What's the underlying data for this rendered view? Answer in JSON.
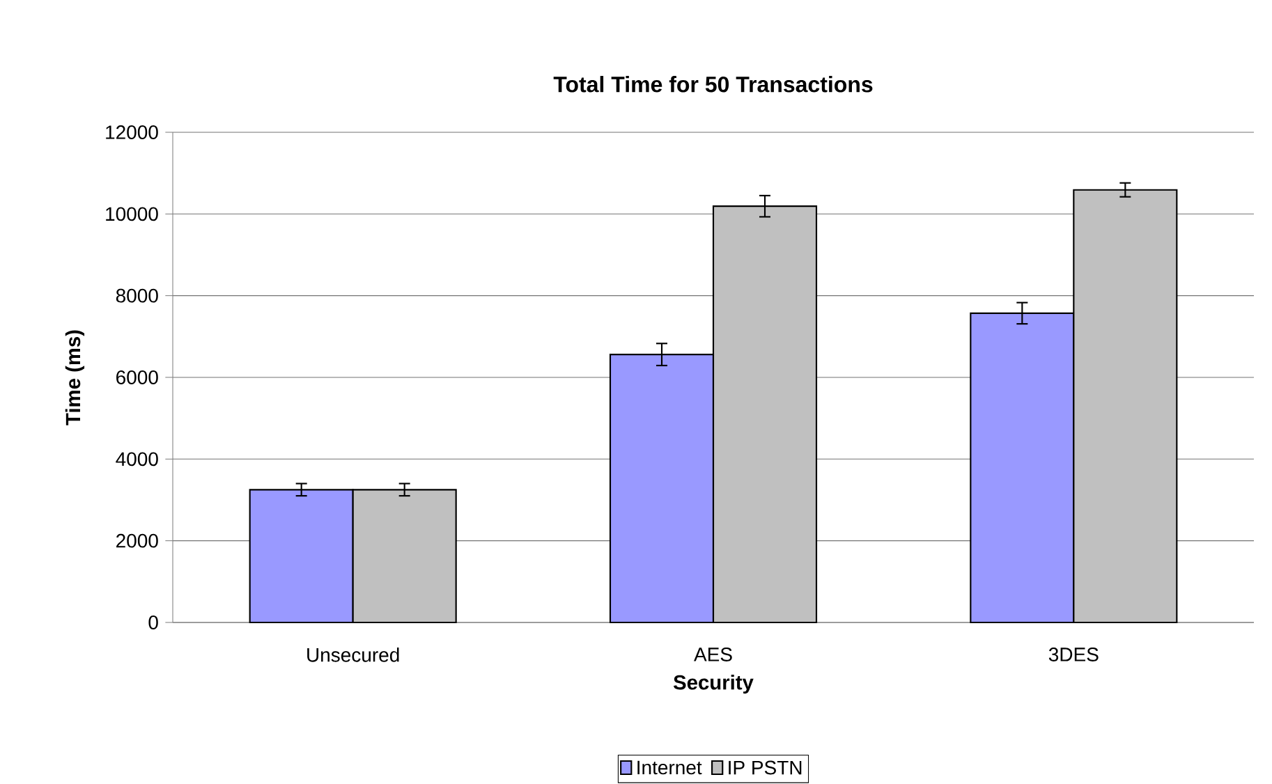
{
  "chart_data": {
    "type": "bar",
    "title": "Total Time for 50 Transactions",
    "xlabel": "Security",
    "ylabel": "Time (ms)",
    "categories": [
      "Unsecured",
      "AES",
      "3DES"
    ],
    "series": [
      {
        "name": "Internet",
        "color": "#9999ff",
        "values": [
          3250,
          6560,
          7570
        ],
        "errors": [
          150,
          270,
          260
        ]
      },
      {
        "name": "IP PSTN",
        "color": "#c0c0c0",
        "values": [
          3250,
          10190,
          10590
        ],
        "errors": [
          150,
          260,
          170
        ]
      }
    ],
    "ylim": [
      0,
      12000
    ],
    "yticks": [
      0,
      2000,
      4000,
      6000,
      8000,
      10000,
      12000
    ],
    "grid": "y",
    "legend": "bottom"
  }
}
